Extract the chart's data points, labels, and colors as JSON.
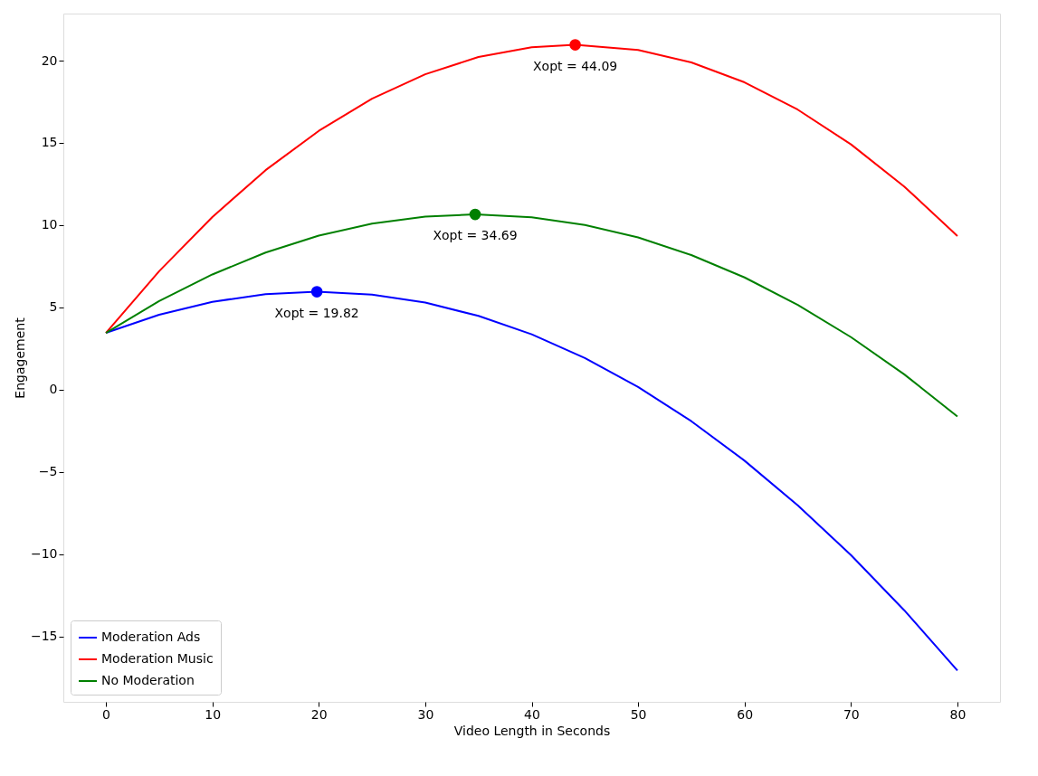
{
  "chart_data": {
    "type": "line",
    "xlabel": "Video Length in Seconds",
    "ylabel": "Engagement",
    "xlim": [
      -4,
      84
    ],
    "xticks": [
      0,
      10,
      20,
      30,
      40,
      50,
      60,
      70,
      80
    ],
    "ylim": [
      -18.98,
      22.86
    ],
    "yticks": [
      -15,
      -10,
      -5,
      0,
      5,
      10,
      15,
      20
    ],
    "grid": false,
    "legend": "bottom left",
    "line_style": "solid",
    "marker": "none",
    "series": [
      {
        "name": "Moderation Ads",
        "color": "#0000ff",
        "x": [
          0,
          5,
          10,
          15,
          19.82,
          25,
          30,
          35,
          40,
          45,
          50,
          55,
          60,
          65,
          70,
          75,
          80
        ],
        "values": [
          3.45,
          4.55,
          5.34,
          5.8,
          5.95,
          5.78,
          5.29,
          4.48,
          3.36,
          1.92,
          0.16,
          -1.92,
          -4.32,
          -7.03,
          -10.06,
          -13.41,
          -17.08
        ]
      },
      {
        "name": "Moderation Music",
        "color": "#ff0000",
        "x": [
          0,
          5,
          10,
          15,
          20,
          25,
          30,
          35,
          40,
          44.09,
          50,
          55,
          60,
          65,
          70,
          75,
          80
        ],
        "values": [
          3.45,
          7.2,
          10.49,
          13.34,
          15.73,
          17.68,
          19.17,
          20.22,
          20.81,
          20.96,
          20.65,
          19.89,
          18.68,
          17.02,
          14.91,
          12.35,
          9.34
        ]
      },
      {
        "name": "No Moderation",
        "color": "#008000",
        "x": [
          0,
          5,
          10,
          15,
          20,
          25,
          30,
          34.69,
          40,
          45,
          50,
          55,
          60,
          65,
          70,
          75,
          80
        ],
        "values": [
          3.45,
          5.38,
          7.0,
          8.33,
          9.36,
          10.09,
          10.52,
          10.65,
          10.48,
          10.01,
          9.25,
          8.18,
          6.82,
          5.15,
          3.19,
          0.93,
          -1.63
        ]
      },
      {
        "type": "scatter",
        "marker": "circle",
        "color": "#0000ff",
        "x": [
          19.82
        ],
        "values": [
          5.95
        ]
      },
      {
        "type": "scatter",
        "marker": "circle",
        "color": "#ff0000",
        "x": [
          44.09
        ],
        "values": [
          20.96
        ]
      },
      {
        "type": "scatter",
        "marker": "circle",
        "color": "#008000",
        "x": [
          34.69
        ],
        "values": [
          10.65
        ]
      }
    ],
    "annotations": [
      {
        "text": "Xopt = 19.82",
        "x": 19.82,
        "y": 5.95
      },
      {
        "text": "Xopt = 44.09",
        "x": 44.09,
        "y": 20.96
      },
      {
        "text": "Xopt = 34.69",
        "x": 34.69,
        "y": 10.65
      }
    ]
  }
}
